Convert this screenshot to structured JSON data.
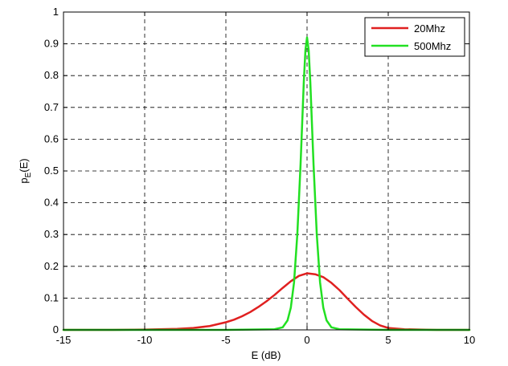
{
  "chart_data": {
    "type": "line",
    "title": "",
    "xlabel": "E (dB)",
    "ylabel": {
      "main": "p",
      "sub": "E",
      "suffix": "(E)"
    },
    "xlim": [
      -15,
      10
    ],
    "ylim": [
      0,
      1
    ],
    "x_ticks": [
      -15,
      -10,
      -5,
      0,
      5,
      10
    ],
    "y_ticks": [
      0,
      0.1,
      0.2,
      0.3,
      0.4,
      0.5,
      0.6,
      0.7,
      0.8,
      0.9,
      1
    ],
    "grid": true,
    "legend_position": "top-right",
    "series": [
      {
        "name": "20Mhz",
        "color": "#e02020",
        "x": [
          -15,
          -12,
          -10,
          -8,
          -7,
          -6,
          -5,
          -4.5,
          -4,
          -3.5,
          -3,
          -2.5,
          -2,
          -1.5,
          -1,
          -0.5,
          0,
          0.5,
          1,
          1.5,
          2,
          2.5,
          3,
          3.5,
          4,
          4.5,
          5,
          6,
          7,
          8,
          10
        ],
        "y": [
          0,
          0,
          0.001,
          0.003,
          0.006,
          0.012,
          0.024,
          0.032,
          0.043,
          0.056,
          0.072,
          0.09,
          0.11,
          0.132,
          0.153,
          0.17,
          0.178,
          0.175,
          0.166,
          0.148,
          0.125,
          0.098,
          0.072,
          0.048,
          0.028,
          0.014,
          0.006,
          0.002,
          0.001,
          0,
          0
        ]
      },
      {
        "name": "500Mhz",
        "color": "#22e022",
        "x": [
          -15,
          -5,
          -2,
          -1.5,
          -1.2,
          -1,
          -0.8,
          -0.6,
          -0.4,
          -0.3,
          -0.2,
          -0.1,
          0,
          0.1,
          0.2,
          0.3,
          0.4,
          0.6,
          0.8,
          1,
          1.2,
          1.5,
          2,
          5,
          10
        ],
        "y": [
          0,
          0,
          0.002,
          0.008,
          0.03,
          0.07,
          0.15,
          0.3,
          0.52,
          0.65,
          0.78,
          0.88,
          0.92,
          0.88,
          0.78,
          0.65,
          0.52,
          0.3,
          0.15,
          0.07,
          0.03,
          0.008,
          0.002,
          0,
          0
        ]
      }
    ]
  }
}
